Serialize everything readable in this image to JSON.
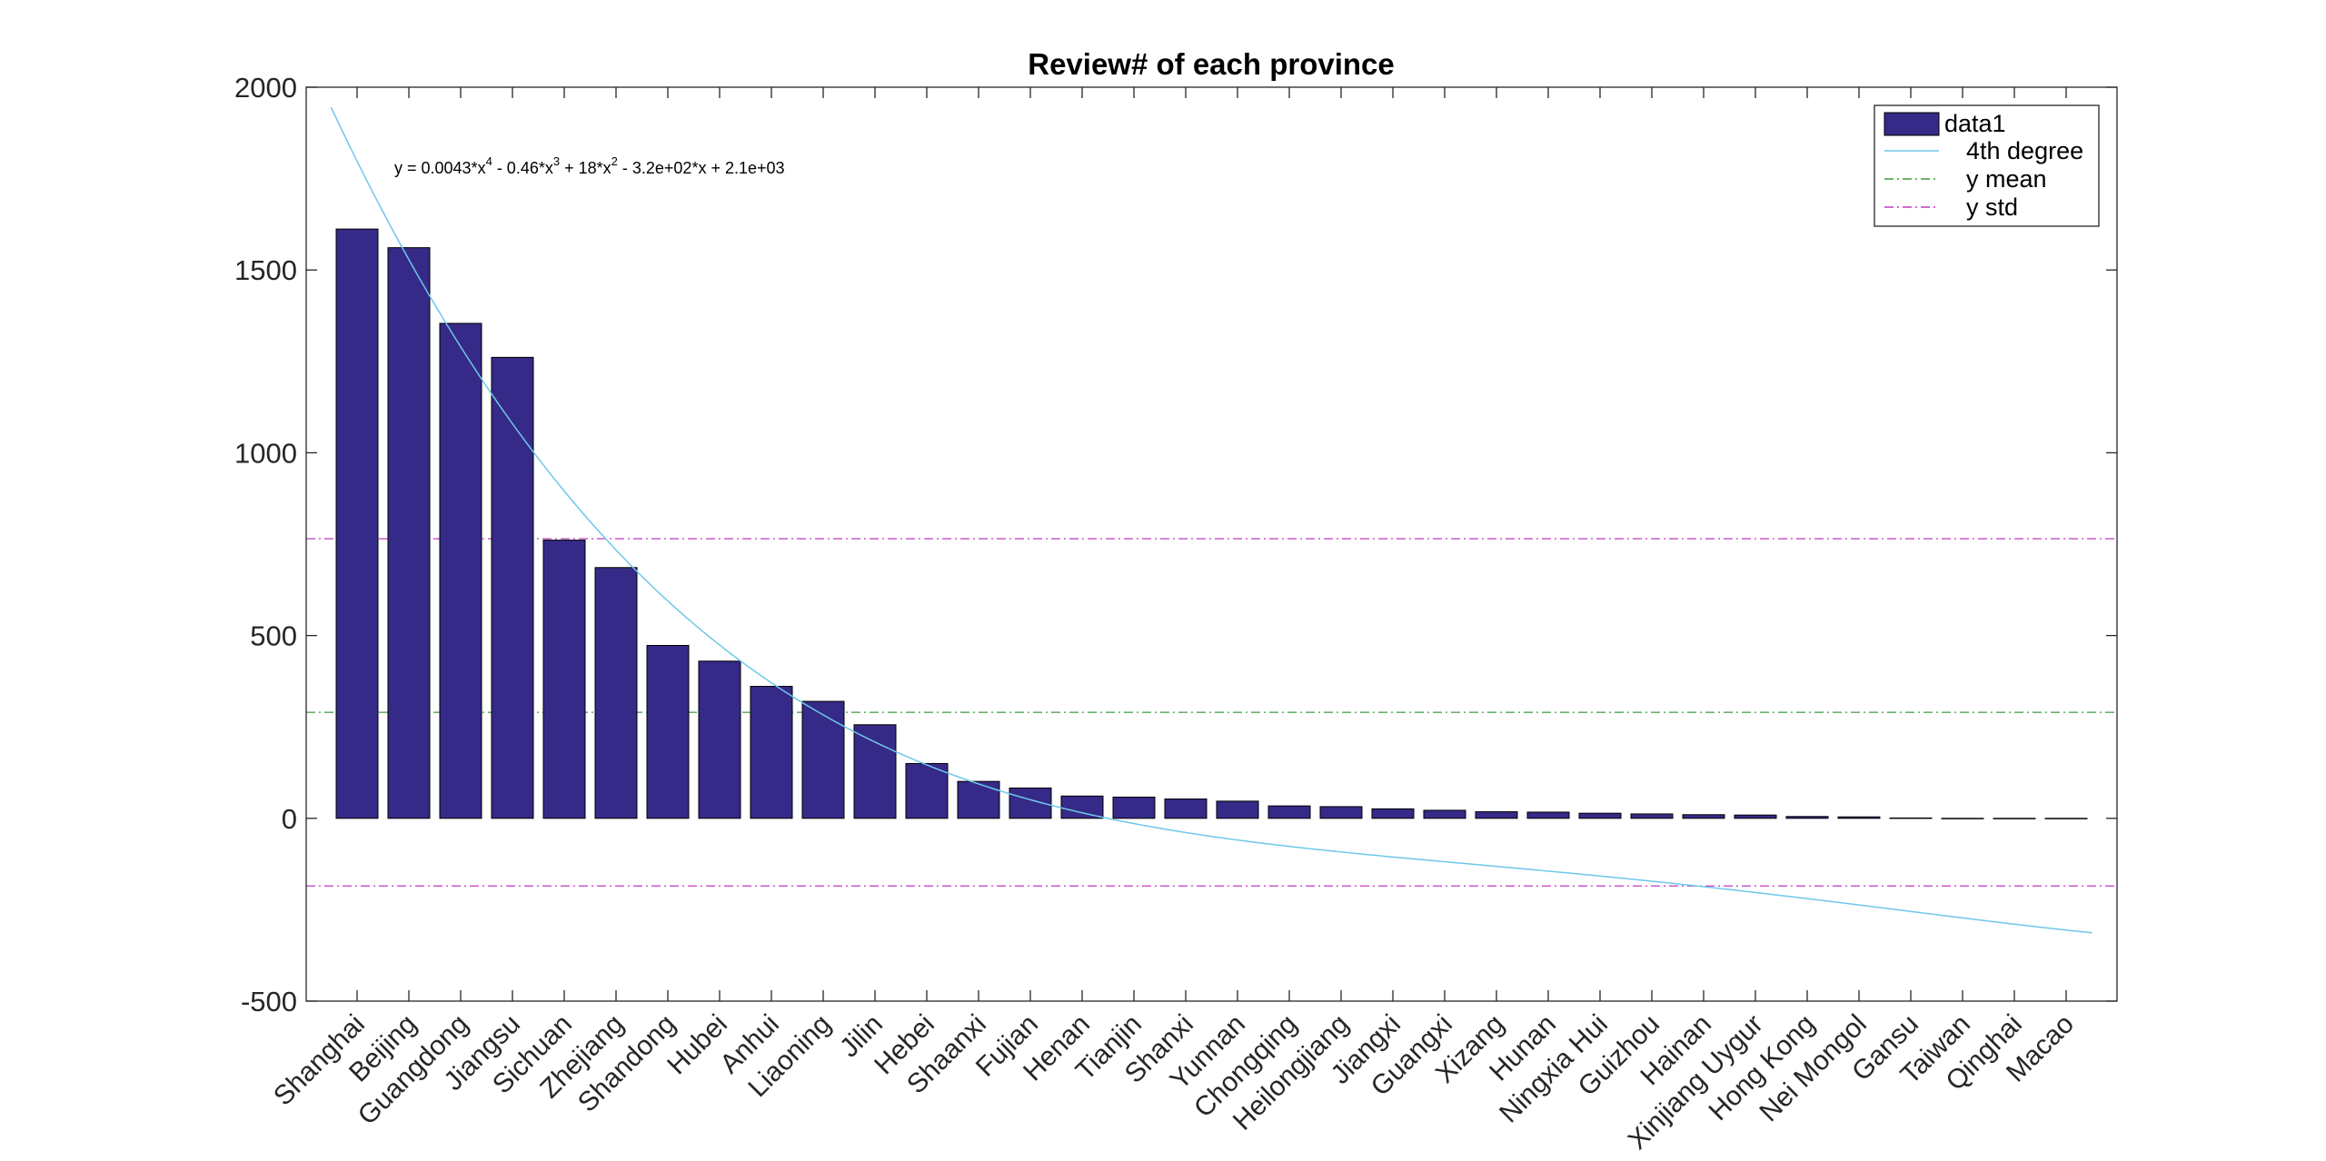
{
  "chart_data": {
    "type": "bar",
    "title": "Review# of each province",
    "xlabel": "",
    "ylabel": "",
    "ylim": [
      -500,
      2000
    ],
    "yticks": [
      -500,
      0,
      500,
      1000,
      1500,
      2000
    ],
    "grid": false,
    "legend_position": "top-right",
    "categories": [
      "Shanghai",
      "Beijing",
      "Guangdong",
      "Jiangsu",
      "Sichuan",
      "Zhejiang",
      "Shandong",
      "Hubei",
      "Anhui",
      "Liaoning",
      "Jilin",
      "Hebei",
      "Shaanxi",
      "Fujian",
      "Henan",
      "Tianjin",
      "Shanxi",
      "Yunnan",
      "Chongqing",
      "Heilongjiang",
      "Jiangxi",
      "Guangxi",
      "Xizang",
      "Hunan",
      "Ningxia Hui",
      "Guizhou",
      "Hainan",
      "Xinjiang Uygur",
      "Hong Kong",
      "Nei Mongol",
      "Gansu",
      "Taiwan",
      "Qinghai",
      "Macao"
    ],
    "series": [
      {
        "name": "data1",
        "color": "#352a87",
        "values": [
          1612,
          1561,
          1354,
          1261,
          761,
          686,
          473,
          430,
          361,
          320,
          256,
          150,
          101,
          83,
          61,
          58,
          53,
          47,
          34,
          32,
          26,
          22,
          18,
          17,
          14,
          12,
          10,
          9,
          5,
          4,
          1,
          0,
          0,
          0
        ]
      }
    ],
    "fit": {
      "name": "4th degree",
      "color": "#6ec8ea",
      "coefficients": [
        0.0043,
        -0.46,
        18,
        -320,
        2100
      ],
      "equation": {
        "part1": "y = 0.0043*x",
        "exp1": "4",
        "part2": " - 0.46*x",
        "exp2": "3",
        "part3": " + 18*x",
        "exp3": "2",
        "part4": " - 3.2e+02*x + 2.1e+03"
      }
    },
    "mean": {
      "name": "y mean",
      "value": 290,
      "color": "#3c9b3c"
    },
    "std": {
      "name": "y std",
      "values": [
        765,
        -185
      ],
      "color": "#c039c0"
    }
  }
}
